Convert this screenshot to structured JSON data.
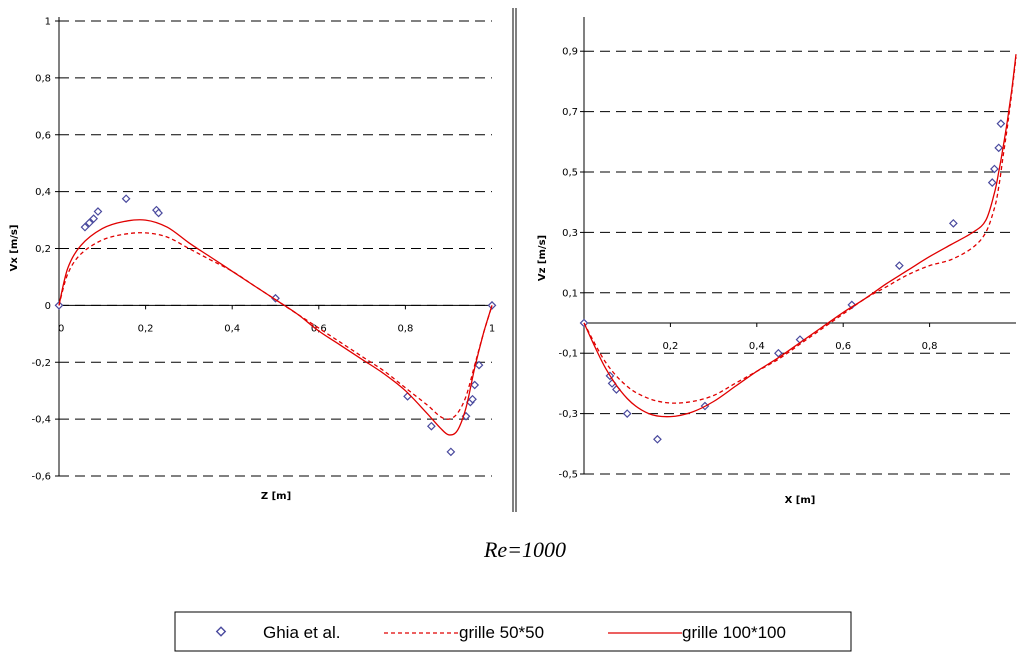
{
  "caption": "Re=1000",
  "legend": {
    "entries": [
      {
        "label": "Ghia et al.",
        "style": "marker"
      },
      {
        "label": "grille 50*50",
        "style": "dashed"
      },
      {
        "label": "grille 100*100",
        "style": "solid"
      }
    ]
  },
  "colors": {
    "marker": "#4a4a9e",
    "line": "#e00000",
    "grid": "#000000"
  },
  "chart_data": [
    {
      "type": "line",
      "xlabel": "Z [m]",
      "ylabel": "Vx [m/s]",
      "xlim": [
        0,
        1
      ],
      "ylim": [
        -0.6,
        1
      ],
      "xticks": [
        {
          "v": 0,
          "label": "0"
        },
        {
          "v": 0.2,
          "label": "0,2"
        },
        {
          "v": 0.4,
          "label": "0,4"
        },
        {
          "v": 0.6,
          "label": "0,6"
        },
        {
          "v": 0.8,
          "label": "0,8"
        },
        {
          "v": 1,
          "label": "1"
        }
      ],
      "yticks": [
        {
          "v": 1,
          "label": "1"
        },
        {
          "v": 0.8,
          "label": "0,8"
        },
        {
          "v": 0.6,
          "label": "0,6"
        },
        {
          "v": 0.4,
          "label": "0,4"
        },
        {
          "v": 0.2,
          "label": "0,2"
        },
        {
          "v": 0,
          "label": "0"
        },
        {
          "v": -0.2,
          "label": "-0,2"
        },
        {
          "v": -0.4,
          "label": "-0,4"
        },
        {
          "v": -0.6,
          "label": "-0,6"
        }
      ],
      "grid": "horizontal-dashed",
      "series": [
        {
          "name": "Ghia et al.",
          "style": "marker",
          "x": [
            0.0,
            0.06,
            0.07,
            0.08,
            0.09,
            0.155,
            0.225,
            0.23,
            0.5,
            0.805,
            0.86,
            0.905,
            0.94,
            0.95,
            0.955,
            0.96,
            0.97,
            1.0
          ],
          "y": [
            0.0,
            0.275,
            0.29,
            0.305,
            0.33,
            0.375,
            0.335,
            0.325,
            0.025,
            -0.32,
            -0.425,
            -0.515,
            -0.39,
            -0.34,
            -0.33,
            -0.28,
            -0.21,
            0.0
          ]
        },
        {
          "name": "grille 50*50",
          "style": "dashed",
          "x": [
            0,
            0.02,
            0.05,
            0.1,
            0.15,
            0.2,
            0.25,
            0.3,
            0.35,
            0.4,
            0.45,
            0.5,
            0.55,
            0.6,
            0.65,
            0.7,
            0.75,
            0.8,
            0.85,
            0.88,
            0.9,
            0.92,
            0.94,
            0.96,
            0.98,
            1.0
          ],
          "y": [
            0,
            0.11,
            0.18,
            0.23,
            0.25,
            0.255,
            0.24,
            0.2,
            0.16,
            0.12,
            0.07,
            0.02,
            -0.03,
            -0.08,
            -0.13,
            -0.18,
            -0.23,
            -0.29,
            -0.35,
            -0.39,
            -0.4,
            -0.38,
            -0.32,
            -0.21,
            -0.1,
            0
          ]
        },
        {
          "name": "grille 100*100",
          "style": "solid",
          "x": [
            0,
            0.02,
            0.05,
            0.1,
            0.15,
            0.2,
            0.25,
            0.3,
            0.35,
            0.4,
            0.45,
            0.5,
            0.55,
            0.6,
            0.65,
            0.7,
            0.75,
            0.8,
            0.85,
            0.88,
            0.9,
            0.92,
            0.94,
            0.96,
            0.98,
            1.0
          ],
          "y": [
            0,
            0.13,
            0.21,
            0.27,
            0.295,
            0.3,
            0.275,
            0.22,
            0.17,
            0.12,
            0.07,
            0.02,
            -0.03,
            -0.09,
            -0.14,
            -0.19,
            -0.24,
            -0.3,
            -0.38,
            -0.43,
            -0.455,
            -0.44,
            -0.36,
            -0.22,
            -0.1,
            0
          ]
        }
      ]
    },
    {
      "type": "line",
      "xlabel": "X [m]",
      "ylabel": "Vz [m/s]",
      "xlim": [
        0,
        1
      ],
      "ylim": [
        -0.5,
        1
      ],
      "xticks": [
        {
          "v": 0.2,
          "label": "0,2"
        },
        {
          "v": 0.4,
          "label": "0,4"
        },
        {
          "v": 0.6,
          "label": "0,6"
        },
        {
          "v": 0.8,
          "label": "0,8"
        }
      ],
      "yticks": [
        {
          "v": 0.9,
          "label": "0,9"
        },
        {
          "v": 0.7,
          "label": "0,7"
        },
        {
          "v": 0.5,
          "label": "0,5"
        },
        {
          "v": 0.3,
          "label": "0,3"
        },
        {
          "v": 0.1,
          "label": "0,1"
        },
        {
          "v": -0.1,
          "label": "-0,1"
        },
        {
          "v": -0.3,
          "label": "-0,3"
        },
        {
          "v": -0.5,
          "label": "-0,5"
        }
      ],
      "grid": "horizontal-dashed",
      "series": [
        {
          "name": "Ghia et al.",
          "style": "marker",
          "x": [
            0.0,
            0.06,
            0.065,
            0.075,
            0.1,
            0.17,
            0.28,
            0.45,
            0.5,
            0.62,
            0.73,
            0.855,
            0.945,
            0.95,
            0.96,
            0.965
          ],
          "y": [
            0.0,
            -0.175,
            -0.2,
            -0.22,
            -0.3,
            -0.385,
            -0.275,
            -0.1,
            -0.055,
            0.06,
            0.19,
            0.33,
            0.465,
            0.51,
            0.58,
            0.66
          ]
        },
        {
          "name": "grille 50*50",
          "style": "dashed",
          "x": [
            0,
            0.05,
            0.1,
            0.15,
            0.2,
            0.25,
            0.3,
            0.35,
            0.4,
            0.45,
            0.5,
            0.55,
            0.6,
            0.65,
            0.7,
            0.75,
            0.8,
            0.85,
            0.9,
            0.93,
            0.95,
            0.96,
            0.97,
            0.98,
            0.99,
            1.0
          ],
          "y": [
            0,
            -0.13,
            -0.21,
            -0.25,
            -0.265,
            -0.26,
            -0.24,
            -0.2,
            -0.16,
            -0.12,
            -0.07,
            -0.02,
            0.03,
            0.08,
            0.12,
            0.16,
            0.19,
            0.21,
            0.25,
            0.3,
            0.38,
            0.45,
            0.55,
            0.65,
            0.76,
            0.88
          ]
        },
        {
          "name": "grille 100*100",
          "style": "solid",
          "x": [
            0,
            0.05,
            0.1,
            0.15,
            0.2,
            0.25,
            0.3,
            0.35,
            0.4,
            0.45,
            0.5,
            0.55,
            0.6,
            0.65,
            0.7,
            0.75,
            0.8,
            0.85,
            0.9,
            0.93,
            0.95,
            0.96,
            0.97,
            0.98,
            0.99,
            1.0
          ],
          "y": [
            0,
            -0.15,
            -0.25,
            -0.3,
            -0.31,
            -0.295,
            -0.26,
            -0.21,
            -0.16,
            -0.115,
            -0.065,
            -0.015,
            0.035,
            0.08,
            0.13,
            0.175,
            0.22,
            0.26,
            0.3,
            0.34,
            0.43,
            0.5,
            0.58,
            0.67,
            0.77,
            0.89
          ]
        }
      ]
    }
  ]
}
